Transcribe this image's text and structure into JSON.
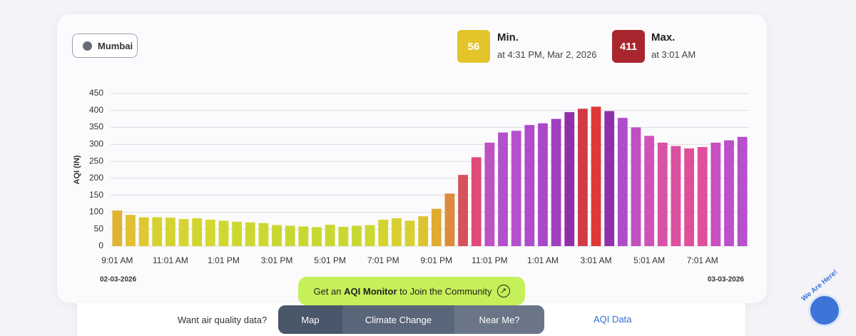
{
  "location": "Mumbai",
  "min": {
    "title": "Min.",
    "value": 56,
    "time": "at 4:31 PM, Mar 2, 2026",
    "color": "#e3c42a"
  },
  "max": {
    "title": "Max.",
    "value": 411,
    "time": "at 3:01 AM",
    "color": "#a8262e"
  },
  "chart_data": {
    "type": "bar",
    "y_label": "AQI (IN)",
    "categories": [
      "9:01 AM",
      null,
      null,
      null,
      "11:01 AM",
      null,
      null,
      null,
      "1:01 PM",
      null,
      null,
      null,
      "3:01 PM",
      null,
      null,
      null,
      "5:01 PM",
      null,
      null,
      null,
      "7:01 PM",
      null,
      null,
      null,
      "9:01 PM",
      null,
      null,
      null,
      "11:01 PM",
      null,
      null,
      null,
      "1:01 AM",
      null,
      null,
      null,
      "3:01 AM",
      null,
      null,
      null,
      "5:01 AM",
      null,
      null,
      null,
      "7:01 AM",
      null,
      null,
      null
    ],
    "values": [
      105,
      92,
      85,
      85,
      84,
      80,
      82,
      78,
      75,
      72,
      70,
      68,
      62,
      60,
      58,
      56,
      63,
      57,
      60,
      62,
      78,
      82,
      75,
      88,
      110,
      155,
      210,
      262,
      305,
      335,
      340,
      357,
      362,
      375,
      395,
      405,
      411,
      398,
      378,
      350,
      325,
      305,
      295,
      288,
      292,
      305,
      312,
      322
    ],
    "colors": [
      "#e0b432",
      "#e2c032",
      "#e0c830",
      "#d8d030",
      "#d4d430",
      "#d6d430",
      "#d4d430",
      "#d4d830",
      "#d0d830",
      "#ccd830",
      "#ccd830",
      "#ccd830",
      "#c8d830",
      "#c8d830",
      "#c8d830",
      "#c8d830",
      "#c8d830",
      "#c8d830",
      "#c8d830",
      "#cad830",
      "#d4d430",
      "#d8d030",
      "#d8d030",
      "#dcc430",
      "#e0aa30",
      "#dc8c3a",
      "#d4525a",
      "#e04a78",
      "#bc52c4",
      "#b450cc",
      "#b450cc",
      "#b04ccc",
      "#aa48c8",
      "#a040c0",
      "#9030a8",
      "#d23a46",
      "#e03838",
      "#9030a8",
      "#b04ccc",
      "#c050c0",
      "#d052b8",
      "#d852a8",
      "#dc50a0",
      "#e04e98",
      "#e04e9c",
      "#c850c0",
      "#bc50c8",
      "#b850cc"
    ],
    "ylim": [
      0,
      450
    ],
    "yticks": [
      0,
      50,
      100,
      150,
      200,
      250,
      300,
      350,
      400,
      450
    ],
    "grid": true,
    "start_date": "02-03-2026",
    "end_date": "03-03-2026"
  },
  "cta": {
    "pre": "Get an",
    "bold": "AQI Monitor",
    "post": "to Join the Community"
  },
  "nav": {
    "prompt": "Want air quality data?",
    "items": [
      "Map",
      "Climate Change",
      "Near Me?"
    ],
    "link": "AQI Data",
    "badge": "We Are Here!"
  }
}
